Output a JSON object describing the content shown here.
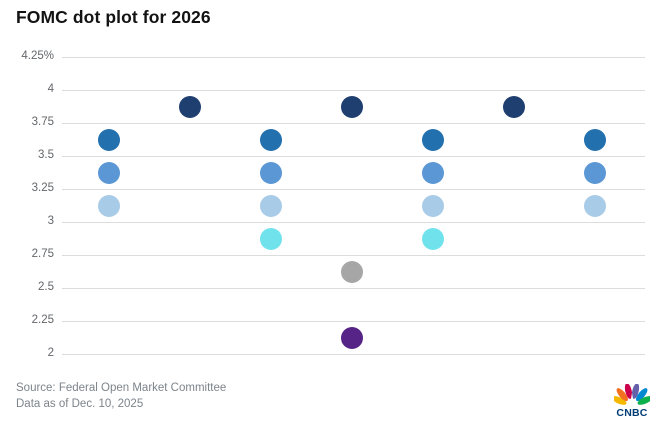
{
  "title": "FOMC dot plot for 2026",
  "footer": {
    "source": "Source: Federal Open Market Committee",
    "asof": "Data as of Dec. 10, 2025"
  },
  "logo": {
    "text": "CNBC",
    "wordmark_color": "#003d75",
    "feather_colors": [
      "#f5b800",
      "#f37021",
      "#cc004c",
      "#6460aa",
      "#0089d0",
      "#0db14b"
    ]
  },
  "colors": {
    "background": "#ffffff",
    "title_text": "#131313",
    "axis_label": "#63666a",
    "gridline": "#dcdcdc",
    "footer_text": "#7c848b"
  },
  "chart_data": {
    "type": "scatter",
    "title": "FOMC dot plot for 2026",
    "xlabel": "",
    "ylabel": "",
    "grid": true,
    "legend": false,
    "y_axis": {
      "ylim": [
        2,
        4.25
      ],
      "tick_step": 0.25,
      "ticks": [
        {
          "value": 4.25,
          "label": "4.25%"
        },
        {
          "value": 4,
          "label": "4"
        },
        {
          "value": 3.75,
          "label": "3.75"
        },
        {
          "value": 3.5,
          "label": "3.5"
        },
        {
          "value": 3.25,
          "label": "3.25"
        },
        {
          "value": 3,
          "label": "3"
        },
        {
          "value": 2.75,
          "label": "2.75"
        },
        {
          "value": 2.5,
          "label": "2.5"
        },
        {
          "value": 2.25,
          "label": "2.25"
        },
        {
          "value": 2,
          "label": "2"
        }
      ]
    },
    "dot_rows": [
      {
        "rate": 3.875,
        "count": 3,
        "color": "#1f3f70"
      },
      {
        "rate": 3.625,
        "count": 4,
        "color": "#2270ae"
      },
      {
        "rate": 3.375,
        "count": 4,
        "color": "#5b97d5"
      },
      {
        "rate": 3.125,
        "count": 4,
        "color": "#a8cbe8"
      },
      {
        "rate": 2.875,
        "count": 2,
        "color": "#70e2ec"
      },
      {
        "rate": 2.625,
        "count": 1,
        "color": "#a6a6a6"
      },
      {
        "rate": 2.125,
        "count": 1,
        "color": "#552486"
      }
    ],
    "total_dots": 19
  }
}
